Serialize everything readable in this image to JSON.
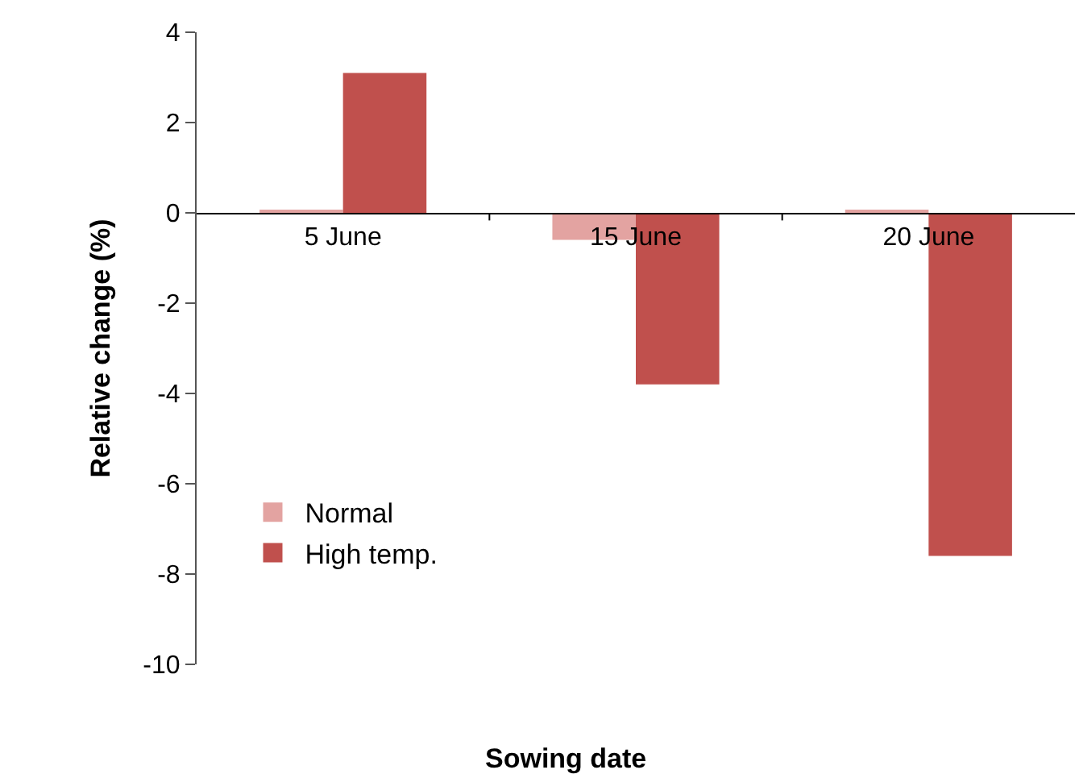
{
  "chart_data": {
    "type": "bar",
    "xlabel": "Sowing date",
    "ylabel": "Relative change (%)",
    "categories": [
      "5 June",
      "15 June",
      "20 June"
    ],
    "series": [
      {
        "name": "Normal",
        "color": "#e3a3a1",
        "values": [
          0.05,
          -0.6,
          0.05
        ]
      },
      {
        "name": "High temp.",
        "color": "#c0504d",
        "values": [
          3.1,
          -3.8,
          -7.6
        ]
      }
    ],
    "ylim": [
      -10,
      4
    ],
    "yticks": [
      -10,
      -8,
      -6,
      -4,
      -2,
      0,
      2,
      4
    ],
    "legend": "bottom left"
  }
}
